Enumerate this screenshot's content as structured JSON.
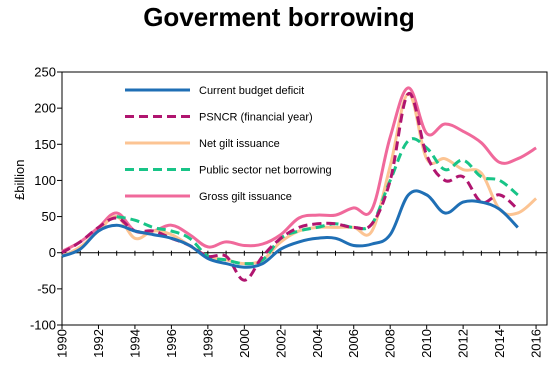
{
  "chart_data": {
    "type": "line",
    "title": "Goverment borrowing",
    "xlabel": "",
    "ylabel": "£billion",
    "xlim": [
      1990,
      2016.6
    ],
    "ylim": [
      -100,
      250
    ],
    "yticks": [
      -100,
      -50,
      0,
      50,
      100,
      150,
      200,
      250
    ],
    "xticks": [
      1990,
      1992,
      1994,
      1996,
      1998,
      2000,
      2002,
      2004,
      2006,
      2008,
      2010,
      2012,
      2014,
      2016
    ],
    "grid": false,
    "legend_position": "top-left inside plot",
    "series": [
      {
        "name": "Current budget deficit",
        "color": "#1f6fb5",
        "dash": "solid",
        "points": [
          [
            1990,
            -5
          ],
          [
            1991,
            5
          ],
          [
            1992,
            30
          ],
          [
            1993,
            38
          ],
          [
            1994,
            30
          ],
          [
            1995,
            25
          ],
          [
            1996,
            20
          ],
          [
            1997,
            10
          ],
          [
            1998,
            -8
          ],
          [
            1999,
            -15
          ],
          [
            2000,
            -20
          ],
          [
            2001,
            -15
          ],
          [
            2002,
            5
          ],
          [
            2003,
            15
          ],
          [
            2004,
            20
          ],
          [
            2005,
            20
          ],
          [
            2006,
            10
          ],
          [
            2007,
            12
          ],
          [
            2008,
            25
          ],
          [
            2009,
            80
          ],
          [
            2010,
            80
          ],
          [
            2011,
            55
          ],
          [
            2012,
            70
          ],
          [
            2013,
            70
          ],
          [
            2014,
            60
          ],
          [
            2015,
            35
          ]
        ]
      },
      {
        "name": "PSNCR (financial year)",
        "color": "#b0156f",
        "dash": "dash",
        "points": [
          [
            1990,
            0
          ],
          [
            1991,
            15
          ],
          [
            1992,
            35
          ],
          [
            1993,
            48
          ],
          [
            1994,
            30
          ],
          [
            1995,
            30
          ],
          [
            1996,
            20
          ],
          [
            1997,
            10
          ],
          [
            1998,
            -5
          ],
          [
            1999,
            -5
          ],
          [
            2000,
            -38
          ],
          [
            2001,
            -5
          ],
          [
            2002,
            20
          ],
          [
            2003,
            35
          ],
          [
            2004,
            40
          ],
          [
            2005,
            40
          ],
          [
            2006,
            35
          ],
          [
            2007,
            40
          ],
          [
            2008,
            100
          ],
          [
            2009,
            220
          ],
          [
            2010,
            135
          ],
          [
            2011,
            100
          ],
          [
            2012,
            105
          ],
          [
            2013,
            70
          ],
          [
            2014,
            80
          ],
          [
            2015,
            60
          ]
        ]
      },
      {
        "name": "Net gilt issuance",
        "color": "#fcc493",
        "dash": "solid",
        "points": [
          [
            1990,
            -5
          ],
          [
            1991,
            8
          ],
          [
            1992,
            30
          ],
          [
            1993,
            50
          ],
          [
            1994,
            20
          ],
          [
            1995,
            30
          ],
          [
            1996,
            25
          ],
          [
            1997,
            10
          ],
          [
            1998,
            -5
          ],
          [
            1999,
            -10
          ],
          [
            2000,
            -15
          ],
          [
            2001,
            -10
          ],
          [
            2002,
            15
          ],
          [
            2003,
            30
          ],
          [
            2004,
            35
          ],
          [
            2005,
            35
          ],
          [
            2006,
            35
          ],
          [
            2007,
            30
          ],
          [
            2008,
            120
          ],
          [
            2009,
            220
          ],
          [
            2010,
            130
          ],
          [
            2011,
            130
          ],
          [
            2012,
            115
          ],
          [
            2013,
            110
          ],
          [
            2014,
            60
          ],
          [
            2015,
            55
          ],
          [
            2016,
            75
          ]
        ]
      },
      {
        "name": "Public sector net borrowing",
        "color": "#18c487",
        "dash": "dash",
        "points": [
          [
            1993,
            50
          ],
          [
            1994,
            45
          ],
          [
            1995,
            35
          ],
          [
            1996,
            30
          ],
          [
            1997,
            20
          ],
          [
            1998,
            -5
          ],
          [
            1999,
            -10
          ],
          [
            2000,
            -15
          ],
          [
            2001,
            -10
          ],
          [
            2002,
            20
          ],
          [
            2003,
            30
          ],
          [
            2004,
            35
          ],
          [
            2005,
            40
          ],
          [
            2006,
            35
          ],
          [
            2007,
            40
          ],
          [
            2008,
            100
          ],
          [
            2009,
            155
          ],
          [
            2010,
            145
          ],
          [
            2011,
            115
          ],
          [
            2012,
            128
          ],
          [
            2013,
            105
          ],
          [
            2014,
            100
          ],
          [
            2015,
            80
          ]
        ]
      },
      {
        "name": "Gross gilt issuance",
        "color": "#f0699b",
        "dash": "solid",
        "points": [
          [
            1990,
            2
          ],
          [
            1991,
            15
          ],
          [
            1992,
            35
          ],
          [
            1993,
            55
          ],
          [
            1994,
            30
          ],
          [
            1995,
            30
          ],
          [
            1996,
            38
          ],
          [
            1997,
            25
          ],
          [
            1998,
            8
          ],
          [
            1999,
            15
          ],
          [
            2000,
            10
          ],
          [
            2001,
            12
          ],
          [
            2002,
            25
          ],
          [
            2003,
            48
          ],
          [
            2004,
            52
          ],
          [
            2005,
            52
          ],
          [
            2006,
            62
          ],
          [
            2007,
            60
          ],
          [
            2008,
            160
          ],
          [
            2009,
            228
          ],
          [
            2010,
            165
          ],
          [
            2011,
            178
          ],
          [
            2012,
            168
          ],
          [
            2013,
            152
          ],
          [
            2014,
            125
          ],
          [
            2015,
            130
          ],
          [
            2016,
            145
          ]
        ]
      }
    ]
  }
}
